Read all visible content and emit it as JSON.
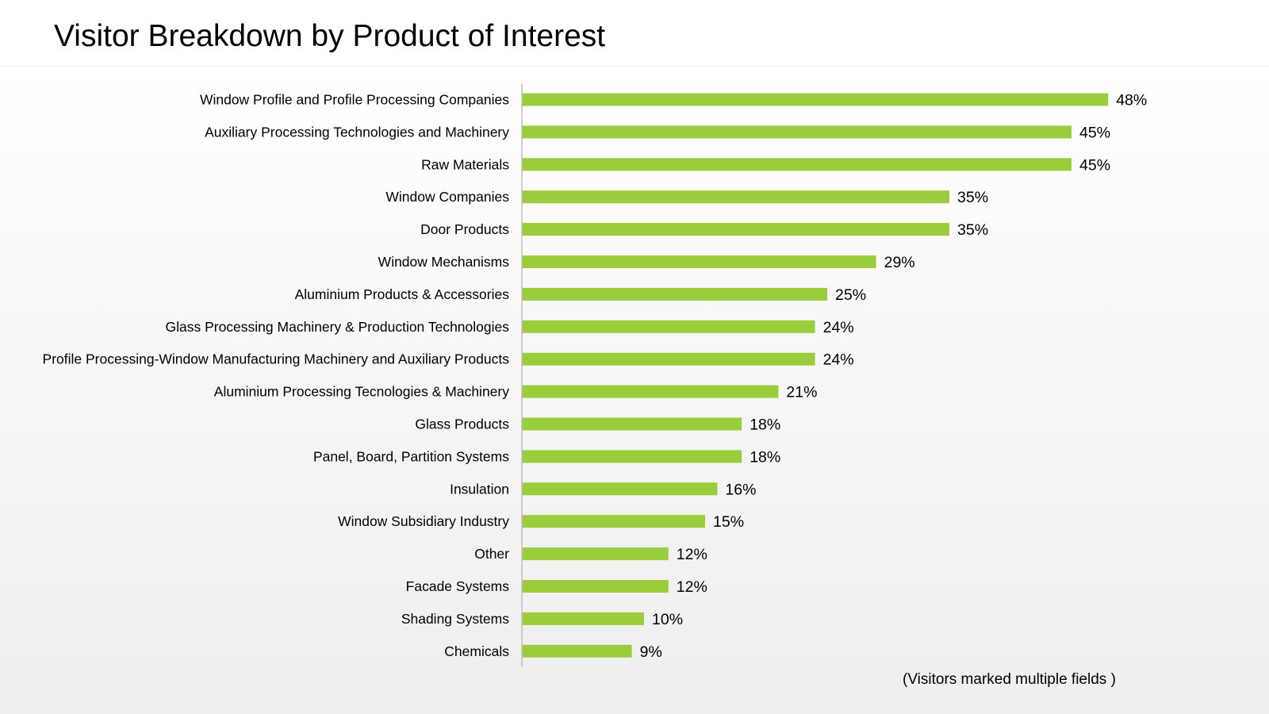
{
  "title": "Visitor Breakdown by Product of Interest",
  "footnote": "(Visitors marked multiple fields )",
  "bar_color": "#9acd3c",
  "chart_data": {
    "type": "bar",
    "orientation": "horizontal",
    "title": "Visitor Breakdown by Product of Interest",
    "xlabel": "",
    "ylabel": "",
    "value_format": "percent",
    "grid": false,
    "xlim": [
      0,
      48
    ],
    "categories": [
      "Window Profile and Profile Processing Companies",
      "Auxiliary Processing Technologies and Machinery",
      "Raw Materials",
      "Window Companies",
      "Door Products",
      "Window Mechanisms",
      "Aluminium Products & Accessories",
      "Glass Processing Machinery & Production Technologies",
      "Profile Processing-Window Manufacturing Machinery and Auxiliary Products",
      "Aluminium Processing Tecnologies & Machinery",
      "Glass Products",
      "Panel, Board, Partition Systems",
      "Insulation",
      "Window Subsidiary Industry",
      "Other",
      "Facade Systems",
      "Shading Systems",
      "Chemicals"
    ],
    "values": [
      48,
      45,
      45,
      35,
      35,
      29,
      25,
      24,
      24,
      21,
      18,
      18,
      16,
      15,
      12,
      12,
      10,
      9
    ],
    "data_labels": [
      "48%",
      "45%",
      "45%",
      "35%",
      "35%",
      "29%",
      "25%",
      "24%",
      "24%",
      "21%",
      "18%",
      "18%",
      "16%",
      "15%",
      "12%",
      "12%",
      "10%",
      "9%"
    ]
  }
}
